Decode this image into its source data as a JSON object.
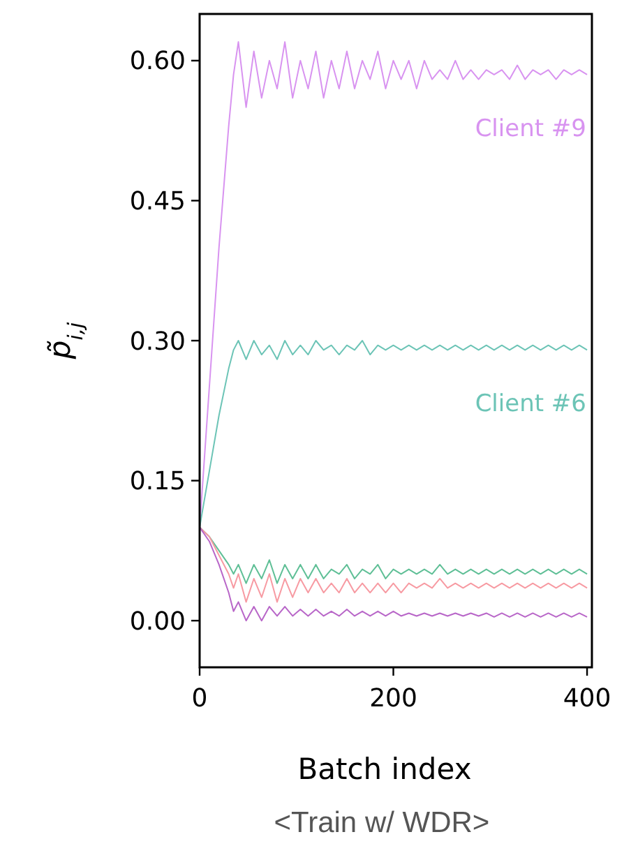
{
  "chart_data": {
    "type": "line",
    "title": "<Train w/ WDR>",
    "xlabel": "Batch index",
    "ylabel": "p̃$_{i,j}$",
    "x": [
      0,
      10,
      20,
      30,
      35,
      40,
      48,
      56,
      64,
      72,
      80,
      88,
      96,
      104,
      112,
      120,
      128,
      136,
      144,
      152,
      160,
      168,
      176,
      184,
      192,
      200,
      208,
      216,
      224,
      232,
      240,
      248,
      256,
      264,
      272,
      280,
      288,
      296,
      304,
      312,
      320,
      328,
      336,
      344,
      352,
      360,
      368,
      376,
      384,
      392,
      400
    ],
    "series": [
      {
        "name": "Client #9",
        "color": "#d893f0",
        "values": [
          0.1,
          0.25,
          0.4,
          0.53,
          0.585,
          0.62,
          0.55,
          0.61,
          0.56,
          0.6,
          0.57,
          0.62,
          0.56,
          0.6,
          0.57,
          0.61,
          0.56,
          0.6,
          0.57,
          0.61,
          0.57,
          0.6,
          0.58,
          0.61,
          0.57,
          0.6,
          0.58,
          0.6,
          0.57,
          0.6,
          0.58,
          0.59,
          0.58,
          0.6,
          0.58,
          0.59,
          0.58,
          0.59,
          0.585,
          0.59,
          0.58,
          0.595,
          0.58,
          0.59,
          0.585,
          0.59,
          0.58,
          0.59,
          0.585,
          0.59,
          0.585
        ]
      },
      {
        "name": "Client #6",
        "color": "#6cc4b6",
        "values": [
          0.1,
          0.16,
          0.22,
          0.27,
          0.29,
          0.3,
          0.28,
          0.3,
          0.285,
          0.295,
          0.28,
          0.3,
          0.285,
          0.295,
          0.285,
          0.3,
          0.29,
          0.295,
          0.285,
          0.295,
          0.29,
          0.3,
          0.285,
          0.295,
          0.29,
          0.295,
          0.29,
          0.295,
          0.29,
          0.295,
          0.29,
          0.295,
          0.29,
          0.295,
          0.29,
          0.295,
          0.29,
          0.295,
          0.29,
          0.295,
          0.29,
          0.295,
          0.29,
          0.295,
          0.29,
          0.295,
          0.29,
          0.295,
          0.29,
          0.295,
          0.29
        ]
      },
      {
        "color": "#5fbf96",
        "values": [
          0.1,
          0.09,
          0.075,
          0.06,
          0.05,
          0.06,
          0.04,
          0.06,
          0.045,
          0.065,
          0.04,
          0.06,
          0.045,
          0.06,
          0.045,
          0.06,
          0.045,
          0.055,
          0.05,
          0.06,
          0.045,
          0.055,
          0.05,
          0.06,
          0.045,
          0.055,
          0.05,
          0.055,
          0.05,
          0.055,
          0.05,
          0.06,
          0.05,
          0.055,
          0.05,
          0.055,
          0.05,
          0.055,
          0.05,
          0.055,
          0.05,
          0.055,
          0.05,
          0.055,
          0.05,
          0.055,
          0.05,
          0.055,
          0.05,
          0.055,
          0.05
        ]
      },
      {
        "color": "#f79aa2",
        "values": [
          0.1,
          0.09,
          0.07,
          0.05,
          0.035,
          0.05,
          0.02,
          0.045,
          0.025,
          0.05,
          0.02,
          0.045,
          0.025,
          0.045,
          0.03,
          0.045,
          0.03,
          0.04,
          0.03,
          0.045,
          0.03,
          0.04,
          0.03,
          0.04,
          0.03,
          0.04,
          0.03,
          0.04,
          0.035,
          0.04,
          0.035,
          0.045,
          0.035,
          0.04,
          0.035,
          0.04,
          0.035,
          0.04,
          0.035,
          0.04,
          0.035,
          0.04,
          0.035,
          0.04,
          0.035,
          0.04,
          0.035,
          0.04,
          0.035,
          0.04,
          0.035
        ]
      },
      {
        "color": "#b866c8",
        "values": [
          0.1,
          0.085,
          0.06,
          0.03,
          0.01,
          0.02,
          0.0,
          0.015,
          0.0,
          0.015,
          0.005,
          0.015,
          0.005,
          0.012,
          0.005,
          0.012,
          0.005,
          0.01,
          0.005,
          0.012,
          0.005,
          0.01,
          0.005,
          0.01,
          0.005,
          0.01,
          0.005,
          0.008,
          0.005,
          0.008,
          0.005,
          0.008,
          0.005,
          0.008,
          0.005,
          0.008,
          0.005,
          0.008,
          0.004,
          0.008,
          0.004,
          0.008,
          0.004,
          0.008,
          0.004,
          0.008,
          0.004,
          0.008,
          0.004,
          0.008,
          0.004
        ]
      }
    ],
    "xlim": [
      0,
      405
    ],
    "xticks": [
      0,
      200,
      400
    ],
    "ylim": [
      -0.05,
      0.65
    ],
    "yticks": [
      {
        "value": 0,
        "label": "0.00"
      },
      {
        "value": 0.15,
        "label": "0.15"
      },
      {
        "value": 0.3,
        "label": "0.30"
      },
      {
        "value": 0.45,
        "label": "0.45"
      },
      {
        "value": 0.6,
        "label": "0.60"
      }
    ],
    "grid": false,
    "marker": "none",
    "line_style": "solid"
  }
}
